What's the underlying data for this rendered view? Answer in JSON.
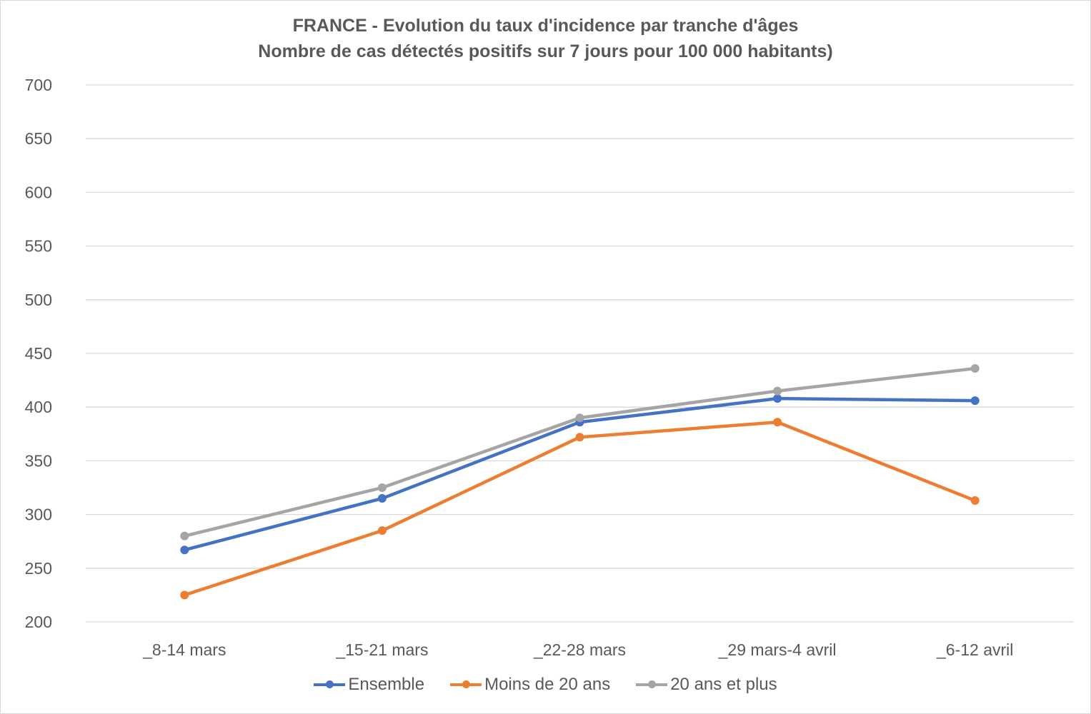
{
  "chart_data": {
    "type": "line",
    "title": "FRANCE - Evolution du taux d'incidence par tranche d'âges",
    "subtitle": "Nombre de cas détectés positifs sur 7 jours pour 100 000 habitants)",
    "xlabel": "",
    "ylabel": "",
    "categories": [
      "_8-14 mars",
      "_15-21 mars",
      "_22-28 mars",
      "_29 mars-4 avril",
      "_6-12 avril"
    ],
    "ylim": [
      200,
      700
    ],
    "yticks": [
      200,
      250,
      300,
      350,
      400,
      450,
      500,
      550,
      600,
      650,
      700
    ],
    "grid": true,
    "legend_position": "bottom",
    "series": [
      {
        "name": "Ensemble",
        "color": "#4472c4",
        "values": [
          267,
          315,
          386,
          408,
          406
        ]
      },
      {
        "name": "Moins de 20 ans",
        "color": "#ed7d31",
        "values": [
          225,
          285,
          372,
          386,
          313
        ]
      },
      {
        "name": "20 ans et plus",
        "color": "#a5a5a5",
        "values": [
          280,
          325,
          390,
          415,
          436
        ]
      }
    ]
  }
}
